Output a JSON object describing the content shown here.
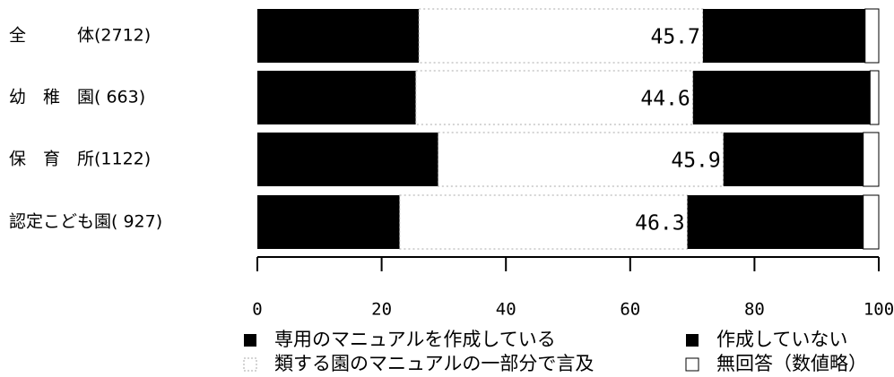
{
  "chart_data": {
    "type": "stacked-barh",
    "categories": [
      "全　　　体(2712)",
      "幼　稚　園( 663)",
      "保　育　所(1122)",
      "認定こども園( 927)"
    ],
    "series": [
      {
        "name": "専用のマニュアルを作成している",
        "color": "#000000",
        "values": [
          26.0,
          25.5,
          29.1,
          22.9
        ]
      },
      {
        "name": "類する園のマニュアルの一部分で言及",
        "color": "#ffffff",
        "values": [
          45.7,
          44.6,
          45.9,
          46.3
        ]
      },
      {
        "name": "作成していない",
        "color": "#000000",
        "values": [
          26.1,
          28.5,
          22.5,
          28.3
        ]
      },
      {
        "name": "無回答（数値略）",
        "color": "#ffffff",
        "values": [
          2.2,
          1.4,
          2.5,
          2.5
        ]
      }
    ],
    "xlim": [
      0,
      100
    ],
    "xticks": [
      0,
      20,
      40,
      60,
      80,
      100
    ]
  }
}
